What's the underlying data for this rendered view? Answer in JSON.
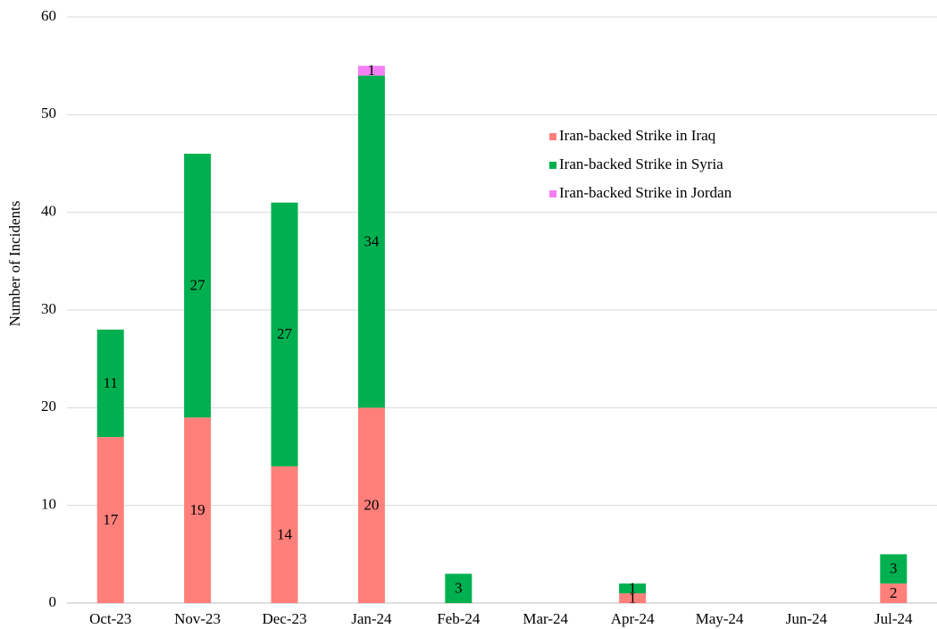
{
  "chart_data": {
    "type": "stacked_bar",
    "ylabel": "Number of Incidents",
    "categories": [
      "Oct-23",
      "Nov-23",
      "Dec-23",
      "Jan-24",
      "Feb-24",
      "Mar-24",
      "Apr-24",
      "May-24",
      "Jun-24",
      "Jul-24"
    ],
    "series": [
      {
        "name": "Iran-backed Strike in Iraq",
        "color": "#ff7f7a",
        "values": [
          17,
          19,
          14,
          20,
          null,
          null,
          1,
          null,
          null,
          2
        ]
      },
      {
        "name": "Iran-backed Strike in Syria",
        "color": "#00b050",
        "values": [
          11,
          27,
          27,
          34,
          3,
          null,
          1,
          null,
          null,
          3
        ]
      },
      {
        "name": "Iran-backed Strike in Jordan",
        "color": "#f47ff4",
        "values": [
          null,
          null,
          null,
          1,
          null,
          null,
          null,
          null,
          null,
          null
        ]
      }
    ],
    "ylim": [
      0,
      60
    ],
    "yticks": [
      0,
      10,
      20,
      30,
      40,
      50,
      60
    ],
    "grid": true,
    "category_label_color": "#ff0000",
    "legend": "upper right"
  }
}
